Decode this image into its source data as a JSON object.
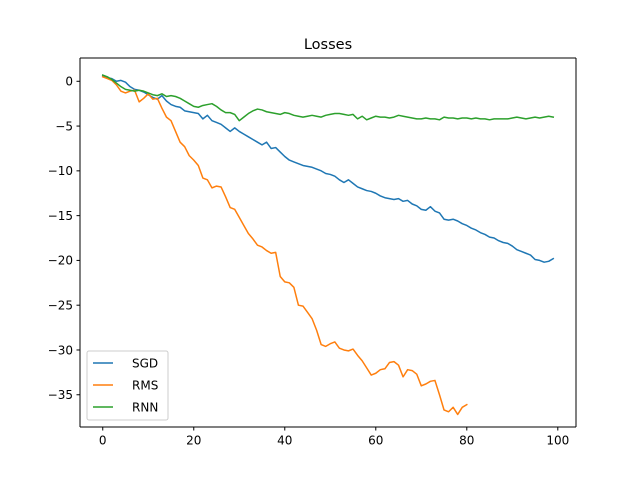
{
  "chart_data": {
    "type": "line",
    "title": "Losses",
    "xlabel": "",
    "ylabel": "",
    "xlim": [
      -5,
      104
    ],
    "ylim": [
      -38.6,
      2.6
    ],
    "xticks": [
      0,
      20,
      40,
      60,
      80,
      100
    ],
    "yticks": [
      0,
      -5,
      -10,
      -15,
      -20,
      -25,
      -30,
      -35
    ],
    "xtick_labels": [
      "0",
      "20",
      "40",
      "60",
      "80",
      "100"
    ],
    "ytick_labels": [
      "0",
      "−5",
      "−10",
      "−15",
      "−20",
      "−25",
      "−30",
      "−35"
    ],
    "grid": false,
    "legend_position": "lower-left",
    "series": [
      {
        "name": "SGD",
        "color": "#1f77b4",
        "x": [
          0,
          1,
          2,
          3,
          4,
          5,
          6,
          7,
          8,
          9,
          10,
          11,
          12,
          13,
          14,
          15,
          16,
          17,
          18,
          19,
          20,
          21,
          22,
          23,
          24,
          25,
          26,
          27,
          28,
          29,
          30,
          31,
          32,
          33,
          34,
          35,
          36,
          37,
          38,
          39,
          40,
          41,
          42,
          43,
          44,
          45,
          46,
          47,
          48,
          49,
          50,
          51,
          52,
          53,
          54,
          55,
          56,
          57,
          58,
          59,
          60,
          61,
          62,
          63,
          64,
          65,
          66,
          67,
          68,
          69,
          70,
          71,
          72,
          73,
          74,
          75,
          76,
          77,
          78,
          79,
          80,
          81,
          82,
          83,
          84,
          85,
          86,
          87,
          88,
          89,
          90,
          91,
          92,
          93,
          94,
          95,
          96,
          97,
          98,
          99
        ],
        "y": [
          0.6,
          0.4,
          0.3,
          0.0,
          0.1,
          -0.1,
          -0.6,
          -0.9,
          -1.0,
          -1.2,
          -1.5,
          -1.8,
          -2.0,
          -1.6,
          -2.2,
          -2.6,
          -2.8,
          -2.9,
          -3.3,
          -3.4,
          -3.5,
          -3.6,
          -4.2,
          -3.8,
          -4.4,
          -4.6,
          -4.8,
          -5.2,
          -5.6,
          -5.2,
          -5.6,
          -5.9,
          -6.2,
          -6.5,
          -6.8,
          -7.1,
          -6.8,
          -7.5,
          -7.4,
          -7.9,
          -8.4,
          -8.8,
          -9.0,
          -9.2,
          -9.4,
          -9.5,
          -9.6,
          -9.8,
          -10.0,
          -10.3,
          -10.4,
          -10.6,
          -11.0,
          -11.3,
          -11.0,
          -11.4,
          -11.8,
          -12.0,
          -12.2,
          -12.3,
          -12.5,
          -12.8,
          -13.0,
          -13.1,
          -13.2,
          -13.1,
          -13.4,
          -13.3,
          -13.7,
          -13.9,
          -14.3,
          -14.4,
          -14.0,
          -14.5,
          -14.7,
          -15.4,
          -15.5,
          -15.4,
          -15.6,
          -15.9,
          -16.1,
          -16.4,
          -16.6,
          -16.9,
          -17.1,
          -17.4,
          -17.5,
          -17.8,
          -18.0,
          -18.1,
          -18.4,
          -18.8,
          -19.0,
          -19.2,
          -19.4,
          -19.9,
          -20.0,
          -20.2,
          -20.1,
          -19.8
        ]
      },
      {
        "name": "RMS",
        "color": "#ff7f0e",
        "x": [
          0,
          1,
          2,
          3,
          4,
          5,
          6,
          7,
          8,
          9,
          10,
          11,
          12,
          13,
          14,
          15,
          16,
          17,
          18,
          19,
          20,
          21,
          22,
          23,
          24,
          25,
          26,
          27,
          28,
          29,
          30,
          31,
          32,
          33,
          34,
          35,
          36,
          37,
          38,
          39,
          40,
          41,
          42,
          43,
          44,
          45,
          46,
          47,
          48,
          49,
          50,
          51,
          52,
          53,
          54,
          55,
          56,
          57,
          58,
          59,
          60,
          61,
          62,
          63,
          64,
          65,
          66,
          67,
          68,
          69,
          70,
          71,
          72,
          73,
          74,
          75,
          76,
          77,
          78,
          79,
          80
        ],
        "y": [
          0.5,
          0.3,
          0.1,
          -0.4,
          -1.1,
          -1.3,
          -1.1,
          -1.0,
          -2.3,
          -1.9,
          -1.4,
          -2.0,
          -1.9,
          -3.0,
          -4.0,
          -4.4,
          -5.6,
          -6.8,
          -7.3,
          -8.3,
          -8.8,
          -9.4,
          -10.8,
          -11.0,
          -11.9,
          -11.7,
          -11.8,
          -12.9,
          -14.1,
          -14.3,
          -15.2,
          -16.1,
          -17.0,
          -17.6,
          -18.3,
          -18.5,
          -18.9,
          -19.2,
          -19.1,
          -21.8,
          -22.4,
          -22.5,
          -23.0,
          -25.0,
          -25.1,
          -25.8,
          -26.5,
          -27.8,
          -29.4,
          -29.6,
          -29.3,
          -29.1,
          -29.8,
          -30.0,
          -30.1,
          -29.9,
          -30.6,
          -31.2,
          -32.0,
          -32.8,
          -32.6,
          -32.2,
          -32.1,
          -31.4,
          -31.3,
          -31.7,
          -33.0,
          -32.2,
          -32.3,
          -32.7,
          -34.0,
          -33.8,
          -33.5,
          -33.4,
          -35.0,
          -36.7,
          -36.9,
          -36.4,
          -37.2,
          -36.4,
          -36.1
        ]
      },
      {
        "name": "RNN",
        "color": "#2ca02c",
        "x": [
          0,
          1,
          2,
          3,
          4,
          5,
          6,
          7,
          8,
          9,
          10,
          11,
          12,
          13,
          14,
          15,
          16,
          17,
          18,
          19,
          20,
          21,
          22,
          23,
          24,
          25,
          26,
          27,
          28,
          29,
          30,
          31,
          32,
          33,
          34,
          35,
          36,
          37,
          38,
          39,
          40,
          41,
          42,
          43,
          44,
          45,
          46,
          47,
          48,
          49,
          50,
          51,
          52,
          53,
          54,
          55,
          56,
          57,
          58,
          59,
          60,
          61,
          62,
          63,
          64,
          65,
          66,
          67,
          68,
          69,
          70,
          71,
          72,
          73,
          74,
          75,
          76,
          77,
          78,
          79,
          80,
          81,
          82,
          83,
          84,
          85,
          86,
          87,
          88,
          89,
          90,
          91,
          92,
          93,
          94,
          95,
          96,
          97,
          98,
          99
        ],
        "y": [
          0.7,
          0.5,
          0.2,
          -0.2,
          -0.6,
          -0.9,
          -1.0,
          -1.1,
          -1.0,
          -1.1,
          -1.3,
          -1.5,
          -1.6,
          -1.4,
          -1.7,
          -1.6,
          -1.7,
          -1.9,
          -2.2,
          -2.5,
          -2.8,
          -2.9,
          -2.7,
          -2.6,
          -2.5,
          -2.8,
          -3.2,
          -3.5,
          -3.5,
          -3.7,
          -4.4,
          -4.0,
          -3.6,
          -3.3,
          -3.1,
          -3.2,
          -3.4,
          -3.5,
          -3.6,
          -3.7,
          -3.5,
          -3.6,
          -3.8,
          -3.9,
          -4.0,
          -3.9,
          -3.8,
          -3.9,
          -4.0,
          -3.8,
          -3.7,
          -3.6,
          -3.6,
          -3.7,
          -3.8,
          -3.7,
          -4.2,
          -3.9,
          -4.3,
          -4.1,
          -3.9,
          -4.0,
          -4.0,
          -4.1,
          -4.0,
          -3.8,
          -3.9,
          -4.0,
          -4.1,
          -4.2,
          -4.2,
          -4.1,
          -4.2,
          -4.2,
          -4.3,
          -4.0,
          -4.1,
          -4.1,
          -4.2,
          -4.1,
          -4.1,
          -4.2,
          -4.1,
          -4.2,
          -4.2,
          -4.3,
          -4.2,
          -4.2,
          -4.2,
          -4.2,
          -4.1,
          -4.0,
          -4.1,
          -4.2,
          -4.1,
          -4.0,
          -4.1,
          -4.0,
          -3.9,
          -4.0
        ]
      }
    ]
  }
}
